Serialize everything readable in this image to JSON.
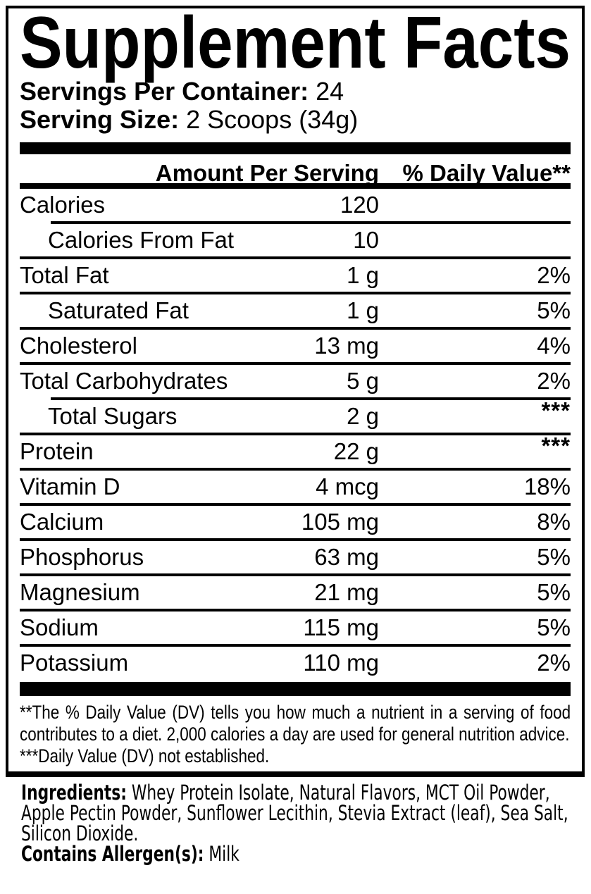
{
  "label": {
    "title": "Supplement Facts",
    "servings_per_container": {
      "label": "Servings Per Container:",
      "value": "24"
    },
    "serving_size": {
      "label": "Serving Size:",
      "value": "2 Scoops (34g)"
    },
    "columns": {
      "amount": "Amount Per Serving",
      "daily_value": "% Daily Value**"
    },
    "rows": [
      {
        "label": "Calories",
        "amount": "120",
        "dv": "",
        "indent": false
      },
      {
        "label": "Calories From Fat",
        "amount": "10",
        "dv": "",
        "indent": true
      },
      {
        "label": "Total Fat",
        "amount": "1 g",
        "dv": "2%",
        "indent": false
      },
      {
        "label": "Saturated Fat",
        "amount": "1 g",
        "dv": "5%",
        "indent": true
      },
      {
        "label": "Cholesterol",
        "amount": "13 mg",
        "dv": "4%",
        "indent": false
      },
      {
        "label": "Total Carbohydrates",
        "amount": "5 g",
        "dv": "2%",
        "indent": false
      },
      {
        "label": "Total Sugars",
        "amount": "2 g",
        "dv": "***",
        "indent": true
      },
      {
        "label": "Protein",
        "amount": "22 g",
        "dv": "***",
        "indent": false
      },
      {
        "label": "Vitamin D",
        "amount": "4 mcg",
        "dv": "18%",
        "indent": false
      },
      {
        "label": "Calcium",
        "amount": "105 mg",
        "dv": "8%",
        "indent": false
      },
      {
        "label": "Phosphorus",
        "amount": "63 mg",
        "dv": "5%",
        "indent": false
      },
      {
        "label": "Magnesium",
        "amount": "21 mg",
        "dv": "5%",
        "indent": false
      },
      {
        "label": "Sodium",
        "amount": "115 mg",
        "dv": "5%",
        "indent": false
      },
      {
        "label": "Potassium",
        "amount": "110 mg",
        "dv": "2%",
        "indent": false
      }
    ],
    "footnotes": {
      "daily_value": "**The % Daily Value (DV) tells you how much a nutrient in a serving of food contributes to a diet. 2,000 calories a day are used for general nutrition advice.",
      "not_established": "***Daily Value (DV) not established."
    },
    "ingredients": {
      "label": "Ingredients:",
      "value": "Whey Protein Isolate, Natural Flavors, MCT Oil Powder, Apple Pectin Powder, Sunflower Lecithin, Stevia Extract (leaf), Sea Salt, Silicon Dioxide."
    },
    "allergens": {
      "label": "Contains Allergen(s):",
      "value": "Milk"
    },
    "colors": {
      "text": "#000000",
      "background": "#ffffff"
    }
  }
}
